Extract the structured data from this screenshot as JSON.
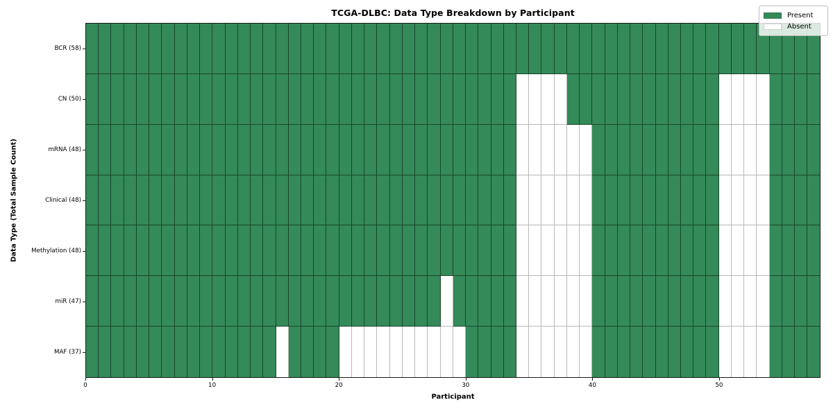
{
  "title": "TCGA-DLBC: Data Type Breakdown by Participant",
  "xlabel": "Participant",
  "ylabel": "Data Type (Total Sample Count)",
  "legend": [
    {
      "label": "Present",
      "color": "#348a58"
    },
    {
      "label": "Absent",
      "color": "#ffffff"
    }
  ],
  "colors": {
    "present": "#348a58",
    "absent": "#ffffff",
    "axis": "#1a1a1a"
  },
  "chart_data": {
    "type": "heatmap",
    "title": "TCGA-DLBC: Data Type Breakdown by Participant",
    "xlabel": "Participant",
    "ylabel": "Data Type (Total Sample Count)",
    "legend_position": "upper right",
    "n_participants": 58,
    "x_range": [
      0,
      58
    ],
    "x_ticks": [
      "0",
      "10",
      "20",
      "30",
      "40",
      "50"
    ],
    "x_tick_values": [
      0,
      10,
      20,
      30,
      40,
      50
    ],
    "rows": [
      {
        "label": "BCR (58)",
        "data_type": "BCR",
        "present_count": 58,
        "absent_participants": []
      },
      {
        "label": "CN (50)",
        "data_type": "CN",
        "present_count": 50,
        "absent_participants": [
          34,
          35,
          36,
          37,
          50,
          51,
          52,
          53
        ]
      },
      {
        "label": "mRNA (48)",
        "data_type": "mRNA",
        "present_count": 48,
        "absent_participants": [
          34,
          35,
          36,
          37,
          38,
          39,
          50,
          51,
          52,
          53
        ]
      },
      {
        "label": "Clinical (48)",
        "data_type": "Clinical",
        "present_count": 48,
        "absent_participants": [
          34,
          35,
          36,
          37,
          38,
          39,
          50,
          51,
          52,
          53
        ]
      },
      {
        "label": "Methylation (48)",
        "data_type": "Methylation",
        "present_count": 48,
        "absent_participants": [
          34,
          35,
          36,
          37,
          38,
          39,
          50,
          51,
          52,
          53
        ]
      },
      {
        "label": "miR (47)",
        "data_type": "miR",
        "present_count": 47,
        "absent_participants": [
          28,
          34,
          35,
          36,
          37,
          38,
          39,
          50,
          51,
          52,
          53
        ]
      },
      {
        "label": "MAF (37)",
        "data_type": "MAF",
        "present_count": 37,
        "absent_participants": [
          15,
          20,
          21,
          22,
          23,
          24,
          25,
          26,
          27,
          28,
          29,
          34,
          35,
          36,
          37,
          38,
          39,
          50,
          51,
          52,
          53
        ]
      }
    ]
  }
}
